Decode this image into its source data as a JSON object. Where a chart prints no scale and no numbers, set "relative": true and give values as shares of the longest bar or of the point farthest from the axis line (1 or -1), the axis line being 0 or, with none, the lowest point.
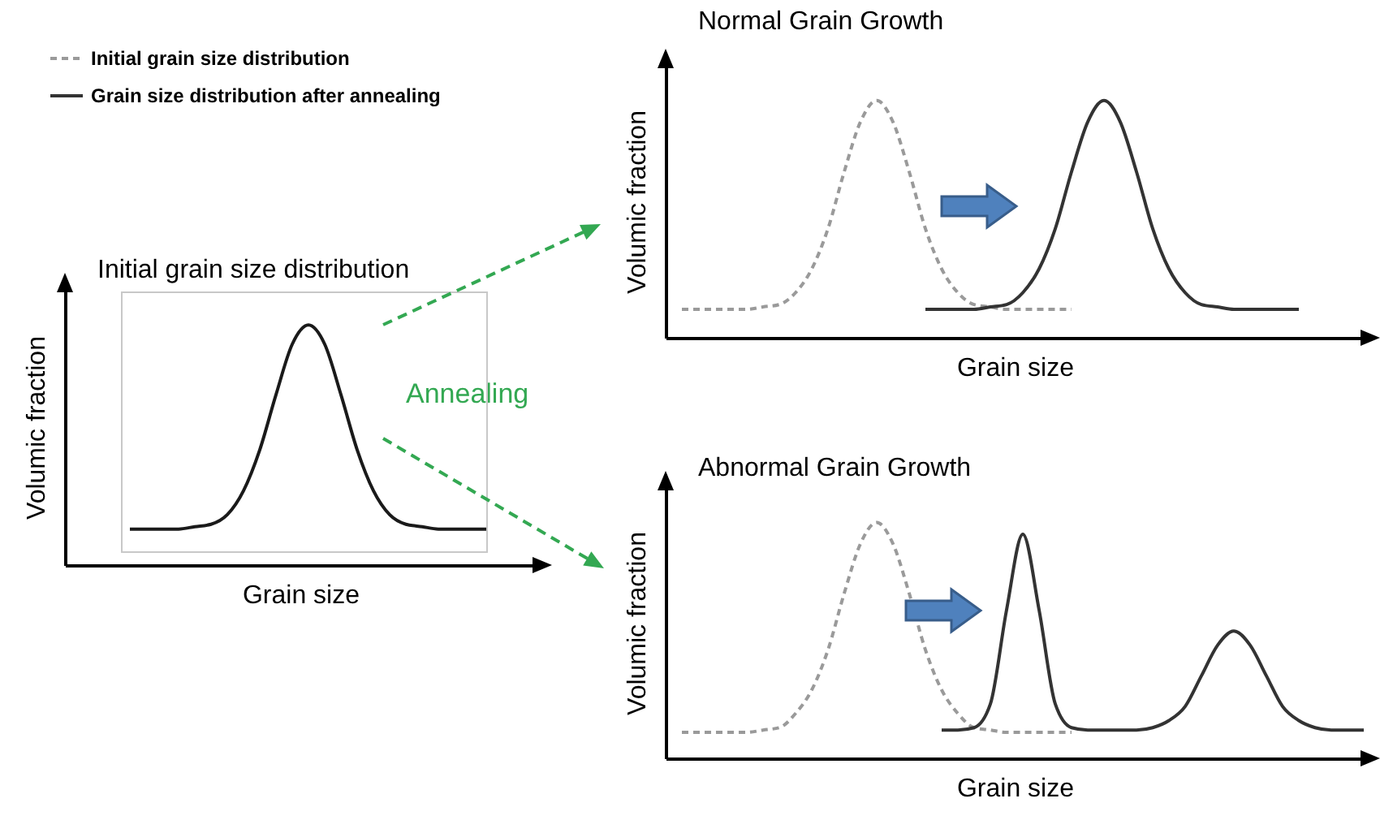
{
  "chart_data": [
    {
      "type": "line",
      "title": "Initial grain size distribution",
      "xlabel": "Grain size",
      "ylabel": "Volumic fraction",
      "relative": true,
      "annotations": [
        "Annealing"
      ],
      "categories": [
        null,
        null,
        null,
        null,
        null,
        null,
        null,
        null,
        null,
        null,
        null,
        null,
        null,
        null,
        null,
        null,
        null,
        null,
        null,
        null,
        null,
        null,
        null,
        null,
        null,
        null,
        null,
        null,
        null,
        null
      ],
      "series": [
        {
          "color": "#1a1a1a",
          "line_style": "solid",
          "values": [
            null,
            null,
            null,
            null,
            0.15,
            0.15,
            0.15,
            0.15,
            0.16,
            0.17,
            0.21,
            0.31,
            0.48,
            0.71,
            0.92,
            1,
            0.92,
            0.71,
            0.48,
            0.31,
            0.21,
            0.17,
            0.16,
            0.15,
            0.15,
            0.15,
            0.15,
            null,
            null,
            null
          ]
        }
      ]
    },
    {
      "type": "line",
      "title": "Normal Grain Growth",
      "xlabel": "Grain size",
      "ylabel": "Volumic fraction",
      "relative": true,
      "legend": "top left",
      "categories": [
        null,
        null,
        null,
        null,
        null,
        null,
        null,
        null,
        null,
        null,
        null,
        null,
        null,
        null,
        null,
        null,
        null,
        null,
        null,
        null,
        null,
        null,
        null,
        null,
        null,
        null,
        null,
        null,
        null,
        null,
        null,
        null,
        null,
        null,
        null,
        null,
        null,
        null,
        null,
        null,
        null,
        null,
        null,
        null
      ],
      "series": [
        {
          "name": "Initial grain size distribution",
          "color": "#9a9a9a",
          "line_style": "dashed",
          "values": [
            null,
            0.12,
            0.12,
            0.12,
            0.12,
            0.12,
            0.13,
            0.14,
            0.19,
            0.29,
            0.46,
            0.7,
            0.91,
            1,
            0.91,
            0.7,
            0.46,
            0.29,
            0.19,
            0.14,
            0.13,
            0.12,
            0.12,
            0.12,
            0.12,
            0.12,
            null,
            null,
            null,
            null,
            null,
            null,
            null,
            null,
            null,
            null,
            null,
            null,
            null,
            null,
            null,
            null,
            null,
            null
          ]
        },
        {
          "name": "Grain size distribution after annealing",
          "color": "#333333",
          "line_style": "solid",
          "values": [
            null,
            null,
            null,
            null,
            null,
            null,
            null,
            null,
            null,
            null,
            null,
            null,
            null,
            null,
            null,
            null,
            0.12,
            0.12,
            0.12,
            0.12,
            0.13,
            0.14,
            0.19,
            0.29,
            0.46,
            0.7,
            0.91,
            1,
            0.91,
            0.7,
            0.46,
            0.29,
            0.19,
            0.14,
            0.13,
            0.12,
            0.12,
            0.12,
            0.12,
            0.12,
            null,
            null,
            null,
            null
          ]
        }
      ]
    },
    {
      "type": "line",
      "title": "Abnormal Grain Growth",
      "xlabel": "Grain size",
      "ylabel": "Volumic fraction",
      "relative": true,
      "categories": [
        null,
        null,
        null,
        null,
        null,
        null,
        null,
        null,
        null,
        null,
        null,
        null,
        null,
        null,
        null,
        null,
        null,
        null,
        null,
        null,
        null,
        null,
        null,
        null,
        null,
        null,
        null,
        null,
        null,
        null,
        null,
        null,
        null,
        null,
        null,
        null,
        null,
        null,
        null,
        null,
        null,
        null,
        null,
        null
      ],
      "series": [
        {
          "color": "#9a9a9a",
          "line_style": "dashed",
          "values": [
            null,
            0.11,
            0.11,
            0.11,
            0.11,
            0.11,
            0.12,
            0.13,
            0.19,
            0.29,
            0.46,
            0.7,
            0.91,
            1,
            0.91,
            0.7,
            0.46,
            0.29,
            0.19,
            0.13,
            0.12,
            0.11,
            0.11,
            0.11,
            0.11,
            0.11,
            null,
            null,
            null,
            null,
            null,
            null,
            null,
            null,
            null,
            null,
            null,
            null,
            null,
            null,
            null,
            null,
            null,
            null
          ]
        },
        {
          "color": "#333333",
          "line_style": "solid",
          "values": [
            null,
            null,
            null,
            null,
            null,
            null,
            null,
            null,
            null,
            null,
            null,
            null,
            null,
            null,
            null,
            null,
            null,
            0.12,
            0.12,
            0.13,
            0.23,
            0.63,
            0.95,
            0.63,
            0.23,
            0.13,
            0.12,
            0.12,
            0.12,
            0.12,
            0.13,
            0.16,
            0.22,
            0.35,
            0.48,
            0.54,
            0.48,
            0.35,
            0.22,
            0.16,
            0.13,
            0.12,
            0.12,
            0.12
          ]
        }
      ]
    }
  ]
}
